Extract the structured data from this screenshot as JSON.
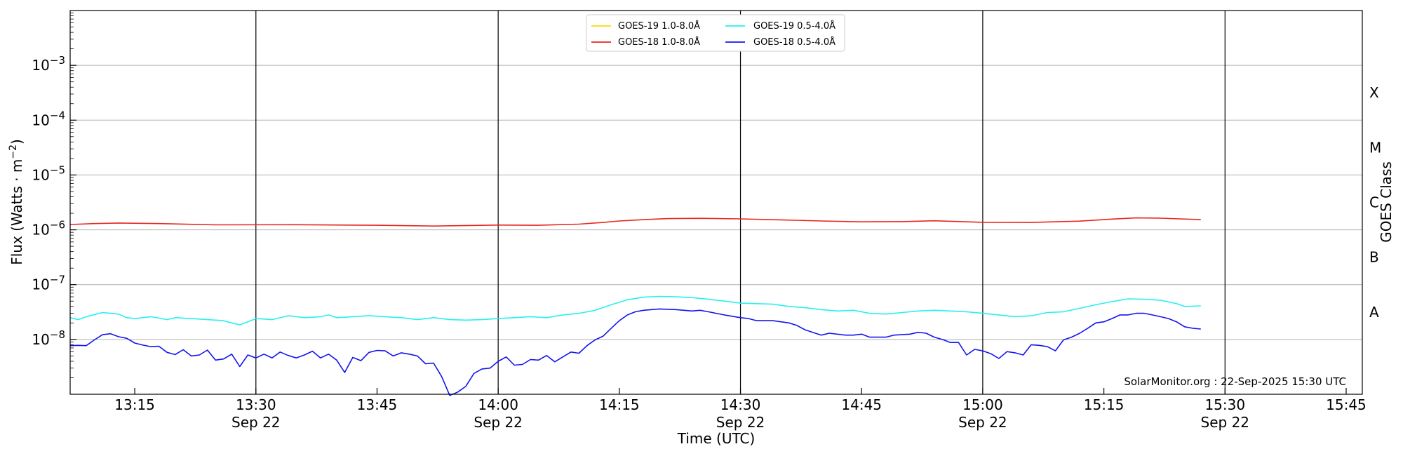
{
  "chart_data": {
    "type": "line",
    "xlabel": "Time (UTC)",
    "ylabel": "Flux (Watts · m",
    "ylabel_sup": "−2",
    "ylabel_close": ")",
    "right_label": "GOES Class",
    "credit": "SolarMonitor.org : 22-Sep-2025 15:30 UTC",
    "y_scale": "log",
    "ylim": [
      1e-09,
      0.01
    ],
    "xlim": [
      "13:07",
      "15:47"
    ],
    "grid": "horizontal",
    "legend_position": "top-center",
    "y_ticks": [
      {
        "base": "10",
        "exp": "−3",
        "value": 0.001
      },
      {
        "base": "10",
        "exp": "−4",
        "value": 0.0001
      },
      {
        "base": "10",
        "exp": "−5",
        "value": 1e-05
      },
      {
        "base": "10",
        "exp": "−6",
        "value": 1e-06
      },
      {
        "base": "10",
        "exp": "−7",
        "value": 1e-07
      },
      {
        "base": "10",
        "exp": "−8",
        "value": 1e-08
      }
    ],
    "x_ticks": [
      {
        "time": "13:15",
        "label": "13:15",
        "date": ""
      },
      {
        "time": "13:30",
        "label": "13:30",
        "date": "Sep 22"
      },
      {
        "time": "13:45",
        "label": "13:45",
        "date": ""
      },
      {
        "time": "14:00",
        "label": "14:00",
        "date": "Sep 22"
      },
      {
        "time": "14:15",
        "label": "14:15",
        "date": ""
      },
      {
        "time": "14:30",
        "label": "14:30",
        "date": "Sep 22"
      },
      {
        "time": "14:45",
        "label": "14:45",
        "date": ""
      },
      {
        "time": "15:00",
        "label": "15:00",
        "date": "Sep 22"
      },
      {
        "time": "15:15",
        "label": "15:15",
        "date": ""
      },
      {
        "time": "15:30",
        "label": "15:30",
        "date": "Sep 22"
      },
      {
        "time": "15:45",
        "label": "15:45",
        "date": ""
      }
    ],
    "vlines": [
      "13:30",
      "14:00",
      "14:30",
      "15:00",
      "15:30"
    ],
    "goes_classes": [
      {
        "label": "X",
        "value": 0.000316
      },
      {
        "label": "M",
        "value": 3.16e-05
      },
      {
        "label": "C",
        "value": 3.16e-06
      },
      {
        "label": "B",
        "value": 3.16e-07
      },
      {
        "label": "A",
        "value": 3.16e-08
      }
    ],
    "series": [
      {
        "name": "GOES-19 1.0-8.0Å",
        "color": "#ffd700",
        "points": []
      },
      {
        "name": "GOES-18 1.0-8.0Å",
        "color": "#e8261c",
        "points": [
          [
            "13:07",
            1.25e-06
          ],
          [
            "13:10",
            1.3e-06
          ],
          [
            "13:13",
            1.33e-06
          ],
          [
            "13:18",
            1.3e-06
          ],
          [
            "13:25",
            1.23e-06
          ],
          [
            "13:35",
            1.24e-06
          ],
          [
            "13:45",
            1.21e-06
          ],
          [
            "13:52",
            1.17e-06
          ],
          [
            "14:00",
            1.22e-06
          ],
          [
            "14:05",
            1.21e-06
          ],
          [
            "14:10",
            1.27e-06
          ],
          [
            "14:13",
            1.36e-06
          ],
          [
            "14:15",
            1.45e-06
          ],
          [
            "14:18",
            1.53e-06
          ],
          [
            "14:21",
            1.6e-06
          ],
          [
            "14:25",
            1.62e-06
          ],
          [
            "14:30",
            1.58e-06
          ],
          [
            "14:35",
            1.52e-06
          ],
          [
            "14:40",
            1.45e-06
          ],
          [
            "14:45",
            1.4e-06
          ],
          [
            "14:50",
            1.41e-06
          ],
          [
            "14:54",
            1.46e-06
          ],
          [
            "15:00",
            1.37e-06
          ],
          [
            "15:06",
            1.36e-06
          ],
          [
            "15:12",
            1.44e-06
          ],
          [
            "15:16",
            1.57e-06
          ],
          [
            "15:19",
            1.65e-06
          ],
          [
            "15:22",
            1.63e-06
          ],
          [
            "15:27",
            1.53e-06
          ]
        ]
      },
      {
        "name": "GOES-19 0.5-4.0Å",
        "color": "#26f0f0",
        "points": [
          [
            "13:07",
            2.5e-08
          ],
          [
            "13:08",
            2.3e-08
          ],
          [
            "13:09",
            2.6e-08
          ],
          [
            "13:11",
            3.1e-08
          ],
          [
            "13:12",
            3e-08
          ],
          [
            "13:13",
            2.9e-08
          ],
          [
            "13:14",
            2.5e-08
          ],
          [
            "13:15",
            2.4e-08
          ],
          [
            "13:17",
            2.6e-08
          ],
          [
            "13:19",
            2.3e-08
          ],
          [
            "13:20",
            2.5e-08
          ],
          [
            "13:22",
            2.4e-08
          ],
          [
            "13:24",
            2.3e-08
          ],
          [
            "13:26",
            2.2e-08
          ],
          [
            "13:27",
            2e-08
          ],
          [
            "13:28",
            1.85e-08
          ],
          [
            "13:29",
            2.1e-08
          ],
          [
            "13:30",
            2.4e-08
          ],
          [
            "13:32",
            2.3e-08
          ],
          [
            "13:34",
            2.7e-08
          ],
          [
            "13:36",
            2.5e-08
          ],
          [
            "13:38",
            2.6e-08
          ],
          [
            "13:39",
            2.8e-08
          ],
          [
            "13:40",
            2.5e-08
          ],
          [
            "13:42",
            2.6e-08
          ],
          [
            "13:44",
            2.7e-08
          ],
          [
            "13:46",
            2.6e-08
          ],
          [
            "13:48",
            2.5e-08
          ],
          [
            "13:50",
            2.3e-08
          ],
          [
            "13:52",
            2.5e-08
          ],
          [
            "13:54",
            2.3e-08
          ],
          [
            "13:56",
            2.25e-08
          ],
          [
            "13:58",
            2.3e-08
          ],
          [
            "14:00",
            2.4e-08
          ],
          [
            "14:02",
            2.5e-08
          ],
          [
            "14:04",
            2.6e-08
          ],
          [
            "14:06",
            2.5e-08
          ],
          [
            "14:08",
            2.8e-08
          ],
          [
            "14:10",
            3e-08
          ],
          [
            "14:12",
            3.4e-08
          ],
          [
            "14:14",
            4.3e-08
          ],
          [
            "14:16",
            5.3e-08
          ],
          [
            "14:18",
            5.9e-08
          ],
          [
            "14:20",
            6.1e-08
          ],
          [
            "14:22",
            6e-08
          ],
          [
            "14:24",
            5.8e-08
          ],
          [
            "14:26",
            5.4e-08
          ],
          [
            "14:28",
            5e-08
          ],
          [
            "14:30",
            4.6e-08
          ],
          [
            "14:32",
            4.5e-08
          ],
          [
            "14:34",
            4.4e-08
          ],
          [
            "14:36",
            4e-08
          ],
          [
            "14:38",
            3.8e-08
          ],
          [
            "14:40",
            3.5e-08
          ],
          [
            "14:42",
            3.3e-08
          ],
          [
            "14:44",
            3.4e-08
          ],
          [
            "14:46",
            3e-08
          ],
          [
            "14:48",
            2.9e-08
          ],
          [
            "14:50",
            3.1e-08
          ],
          [
            "14:52",
            3.3e-08
          ],
          [
            "14:54",
            3.4e-08
          ],
          [
            "14:56",
            3.3e-08
          ],
          [
            "14:58",
            3.2e-08
          ],
          [
            "15:00",
            3e-08
          ],
          [
            "15:02",
            2.8e-08
          ],
          [
            "15:04",
            2.6e-08
          ],
          [
            "15:06",
            2.7e-08
          ],
          [
            "15:08",
            3.1e-08
          ],
          [
            "15:10",
            3.2e-08
          ],
          [
            "15:12",
            3.7e-08
          ],
          [
            "15:14",
            4.3e-08
          ],
          [
            "15:16",
            4.9e-08
          ],
          [
            "15:18",
            5.5e-08
          ],
          [
            "15:20",
            5.4e-08
          ],
          [
            "15:22",
            5.2e-08
          ],
          [
            "15:24",
            4.5e-08
          ],
          [
            "15:25",
            4e-08
          ],
          [
            "15:27",
            4.1e-08
          ]
        ]
      },
      {
        "name": "GOES-18 0.5-4.0Å",
        "color": "#1414f0",
        "points": [
          [
            "13:07",
            7.7e-09
          ],
          [
            "13:08",
            7.8e-09
          ],
          [
            "13:09",
            7.7e-09
          ],
          [
            "13:10",
            9.8e-09
          ],
          [
            "13:11",
            1.22e-08
          ],
          [
            "13:12",
            1.27e-08
          ],
          [
            "13:13",
            1.12e-08
          ],
          [
            "13:14",
            1.05e-08
          ],
          [
            "13:15",
            8.6e-09
          ],
          [
            "13:16",
            7.9e-09
          ],
          [
            "13:17",
            7.4e-09
          ],
          [
            "13:18",
            7.5e-09
          ],
          [
            "13:19",
            5.8e-09
          ],
          [
            "13:20",
            5.3e-09
          ],
          [
            "13:21",
            6.5e-09
          ],
          [
            "13:22",
            5e-09
          ],
          [
            "13:23",
            5.2e-09
          ],
          [
            "13:24",
            6.4e-09
          ],
          [
            "13:25",
            4.2e-09
          ],
          [
            "13:26",
            4.4e-09
          ],
          [
            "13:27",
            5.4e-09
          ],
          [
            "13:28",
            3.2e-09
          ],
          [
            "13:29",
            5.2e-09
          ],
          [
            "13:30",
            4.6e-09
          ],
          [
            "13:31",
            5.4e-09
          ],
          [
            "13:32",
            4.6e-09
          ],
          [
            "13:33",
            5.9e-09
          ],
          [
            "13:34",
            5.1e-09
          ],
          [
            "13:35",
            4.6e-09
          ],
          [
            "13:36",
            5.2e-09
          ],
          [
            "13:37",
            6.1e-09
          ],
          [
            "13:38",
            4.6e-09
          ],
          [
            "13:39",
            5.4e-09
          ],
          [
            "13:40",
            4.2e-09
          ],
          [
            "13:41",
            2.5e-09
          ],
          [
            "13:42",
            4.7e-09
          ],
          [
            "13:43",
            4.1e-09
          ],
          [
            "13:44",
            5.8e-09
          ],
          [
            "13:45",
            6.3e-09
          ],
          [
            "13:46",
            6.2e-09
          ],
          [
            "13:47",
            5e-09
          ],
          [
            "13:48",
            5.7e-09
          ],
          [
            "13:49",
            5.4e-09
          ],
          [
            "13:50",
            5e-09
          ],
          [
            "13:51",
            3.6e-09
          ],
          [
            "13:52",
            3.7e-09
          ],
          [
            "13:53",
            2.1e-09
          ],
          [
            "13:54",
            9.5e-10
          ],
          [
            "13:55",
            1.1e-09
          ],
          [
            "13:56",
            1.4e-09
          ],
          [
            "13:57",
            2.4e-09
          ],
          [
            "13:58",
            2.9e-09
          ],
          [
            "13:59",
            3e-09
          ],
          [
            "14:00",
            4e-09
          ],
          [
            "14:01",
            4.8e-09
          ],
          [
            "14:02",
            3.4e-09
          ],
          [
            "14:03",
            3.5e-09
          ],
          [
            "14:04",
            4.3e-09
          ],
          [
            "14:05",
            4.2e-09
          ],
          [
            "14:06",
            5.1e-09
          ],
          [
            "14:07",
            3.9e-09
          ],
          [
            "14:08",
            4.8e-09
          ],
          [
            "14:09",
            5.9e-09
          ],
          [
            "14:10",
            5.6e-09
          ],
          [
            "14:11",
            7.7e-09
          ],
          [
            "14:12",
            9.8e-09
          ],
          [
            "14:13",
            1.15e-08
          ],
          [
            "14:14",
            1.6e-08
          ],
          [
            "14:15",
            2.2e-08
          ],
          [
            "14:16",
            2.8e-08
          ],
          [
            "14:17",
            3.2e-08
          ],
          [
            "14:18",
            3.4e-08
          ],
          [
            "14:19",
            3.5e-08
          ],
          [
            "14:20",
            3.6e-08
          ],
          [
            "14:22",
            3.5e-08
          ],
          [
            "14:24",
            3.3e-08
          ],
          [
            "14:25",
            3.4e-08
          ],
          [
            "14:26",
            3.2e-08
          ],
          [
            "14:28",
            2.8e-08
          ],
          [
            "14:30",
            2.5e-08
          ],
          [
            "14:31",
            2.4e-08
          ],
          [
            "14:32",
            2.2e-08
          ],
          [
            "14:34",
            2.2e-08
          ],
          [
            "14:36",
            2e-08
          ],
          [
            "14:37",
            1.8e-08
          ],
          [
            "14:38",
            1.5e-08
          ],
          [
            "14:40",
            1.2e-08
          ],
          [
            "14:41",
            1.3e-08
          ],
          [
            "14:43",
            1.2e-08
          ],
          [
            "14:44",
            1.2e-08
          ],
          [
            "14:45",
            1.25e-08
          ],
          [
            "14:46",
            1.1e-08
          ],
          [
            "14:48",
            1.1e-08
          ],
          [
            "14:49",
            1.2e-08
          ],
          [
            "14:51",
            1.25e-08
          ],
          [
            "14:52",
            1.35e-08
          ],
          [
            "14:53",
            1.3e-08
          ],
          [
            "14:54",
            1.1e-08
          ],
          [
            "14:55",
            1e-08
          ],
          [
            "14:56",
            8.8e-09
          ],
          [
            "14:57",
            8.8e-09
          ],
          [
            "14:58",
            5.2e-09
          ],
          [
            "14:59",
            6.6e-09
          ],
          [
            "15:00",
            6.2e-09
          ],
          [
            "15:01",
            5.5e-09
          ],
          [
            "15:02",
            4.5e-09
          ],
          [
            "15:03",
            6e-09
          ],
          [
            "15:04",
            5.7e-09
          ],
          [
            "15:05",
            5.2e-09
          ],
          [
            "15:06",
            8e-09
          ],
          [
            "15:07",
            7.8e-09
          ],
          [
            "15:08",
            7.4e-09
          ],
          [
            "15:09",
            6.2e-09
          ],
          [
            "15:10",
            9.8e-09
          ],
          [
            "15:11",
            1.1e-08
          ],
          [
            "15:12",
            1.3e-08
          ],
          [
            "15:13",
            1.6e-08
          ],
          [
            "15:14",
            2e-08
          ],
          [
            "15:15",
            2.1e-08
          ],
          [
            "15:16",
            2.4e-08
          ],
          [
            "15:17",
            2.8e-08
          ],
          [
            "15:18",
            2.8e-08
          ],
          [
            "15:19",
            3e-08
          ],
          [
            "15:20",
            3e-08
          ],
          [
            "15:21",
            2.8e-08
          ],
          [
            "15:22",
            2.6e-08
          ],
          [
            "15:23",
            2.4e-08
          ],
          [
            "15:24",
            2.1e-08
          ],
          [
            "15:25",
            1.7e-08
          ],
          [
            "15:26",
            1.6e-08
          ],
          [
            "15:27",
            1.55e-08
          ]
        ]
      }
    ]
  }
}
